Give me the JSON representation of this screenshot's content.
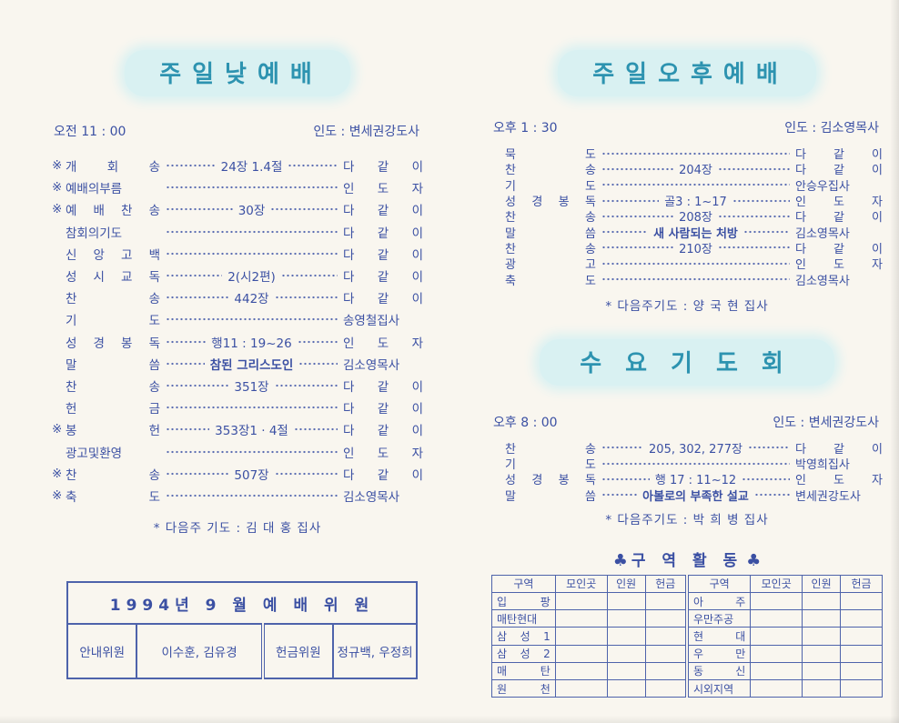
{
  "colors": {
    "page_bg": "#f9f6ef",
    "title_text": "#2d93b0",
    "title_band_bg": "#d9f1f2",
    "body_text": "#3b50a3",
    "table_border": "#4e63ab"
  },
  "left": {
    "title": "주일낮예배",
    "time": "오전 11 : 00",
    "leader": "인도 : 변세권강도사",
    "items": [
      {
        "mark": "※",
        "name": "개 회 송",
        "center": "24장 1.4절",
        "right": "다 같 이"
      },
      {
        "mark": "※",
        "name": "예배의부름",
        "right": "인 도 자"
      },
      {
        "mark": "※",
        "name": "예 배 찬 송",
        "center": "30장",
        "right": "다 같 이"
      },
      {
        "name": "참회의기도",
        "right": "다 같 이"
      },
      {
        "name": "신 앙 고 백",
        "right": "다 같 이"
      },
      {
        "name": "성 시 교 독",
        "center": "2(시2편)",
        "right": "다 같 이"
      },
      {
        "name": "찬 송",
        "center": "442장",
        "right": "다 같 이"
      },
      {
        "name": "기 도",
        "right": "송영철집사"
      },
      {
        "name": "성 경 봉 독",
        "center": "행11 : 19~26",
        "right": "인 도 자"
      },
      {
        "name": "말 씀",
        "center": "참된 그리스도인",
        "center_bold": true,
        "right": "김소영목사"
      },
      {
        "name": "찬 송",
        "center": "351장",
        "right": "다 같 이"
      },
      {
        "name": "헌 금",
        "right": "다 같 이"
      },
      {
        "mark": "※",
        "name": "봉 헌",
        "center": "353장1 · 4절",
        "right": "다 같 이"
      },
      {
        "name": "광고및환영",
        "right": "인 도 자"
      },
      {
        "mark": "※",
        "name": "찬 송",
        "center": "507장",
        "right": "다 같 이"
      },
      {
        "mark": "※",
        "name": "축 도",
        "right": "김소영목사"
      }
    ],
    "next_prayer": "* 다음주 기도 : 김 대 홍 집사",
    "committee": {
      "title": "1994년 9 월 예 배 위 원",
      "cells": [
        "안내위원",
        "이수훈, 김유경",
        "헌금위원",
        "정규백, 우정희"
      ]
    }
  },
  "right": {
    "afternoon": {
      "title": "주일오후예배",
      "time": "오후 1 : 30",
      "leader": "인도 : 김소영목사",
      "items": [
        {
          "name": "묵 도",
          "right": "다 같 이"
        },
        {
          "name": "찬 송",
          "center": "204장",
          "right": "다 같 이"
        },
        {
          "name": "기 도",
          "right": "안승우집사"
        },
        {
          "name": "성 경 봉 독",
          "center": "골3 : 1~17",
          "right": "인 도 자"
        },
        {
          "name": "찬 송",
          "center": "208장",
          "right": "다 같 이"
        },
        {
          "name": "말 씀",
          "center": "새 사람되는 처방",
          "center_bold": true,
          "right": "김소영목사"
        },
        {
          "name": "찬 송",
          "center": "210장",
          "right": "다 같 이"
        },
        {
          "name": "광 고",
          "right": "인 도 자"
        },
        {
          "name": "축 도",
          "right": "김소영목사"
        }
      ],
      "next_prayer": "* 다음주기도 : 양 국 현 집사"
    },
    "wednesday": {
      "title": "수요기도회",
      "time": "오후 8 : 00",
      "leader": "인도 : 변세권강도사",
      "items": [
        {
          "name": "찬 송",
          "center": "205, 302, 277장",
          "right": "다 같 이"
        },
        {
          "name": "기 도",
          "right": "박영희집사"
        },
        {
          "name": "성 경 봉 독",
          "center": "행 17 : 11~12",
          "right": "인 도 자"
        },
        {
          "name": "말 씀",
          "center": "아볼로의 부족한 설교",
          "center_bold": true,
          "right": "변세권강도사"
        }
      ],
      "next_prayer": "* 다음주기도 : 박 희 병 집사"
    }
  },
  "district": {
    "club": "♣",
    "title": "구 역 활 동",
    "headers": [
      "구역",
      "모인곳",
      "인원",
      "헌금",
      "구역",
      "모인곳",
      "인원",
      "헌금"
    ],
    "rows": [
      [
        "입 팡",
        "",
        "",
        "",
        "아 주",
        "",
        "",
        ""
      ],
      [
        "매탄현대",
        "",
        "",
        "",
        "우만주공",
        "",
        "",
        ""
      ],
      [
        "삼 성 1",
        "",
        "",
        "",
        "현 대",
        "",
        "",
        ""
      ],
      [
        "삼 성 2",
        "",
        "",
        "",
        "우 만",
        "",
        "",
        ""
      ],
      [
        "매 탄",
        "",
        "",
        "",
        "동 신",
        "",
        "",
        ""
      ],
      [
        "원 천",
        "",
        "",
        "",
        "시외지역",
        "",
        "",
        ""
      ]
    ]
  }
}
